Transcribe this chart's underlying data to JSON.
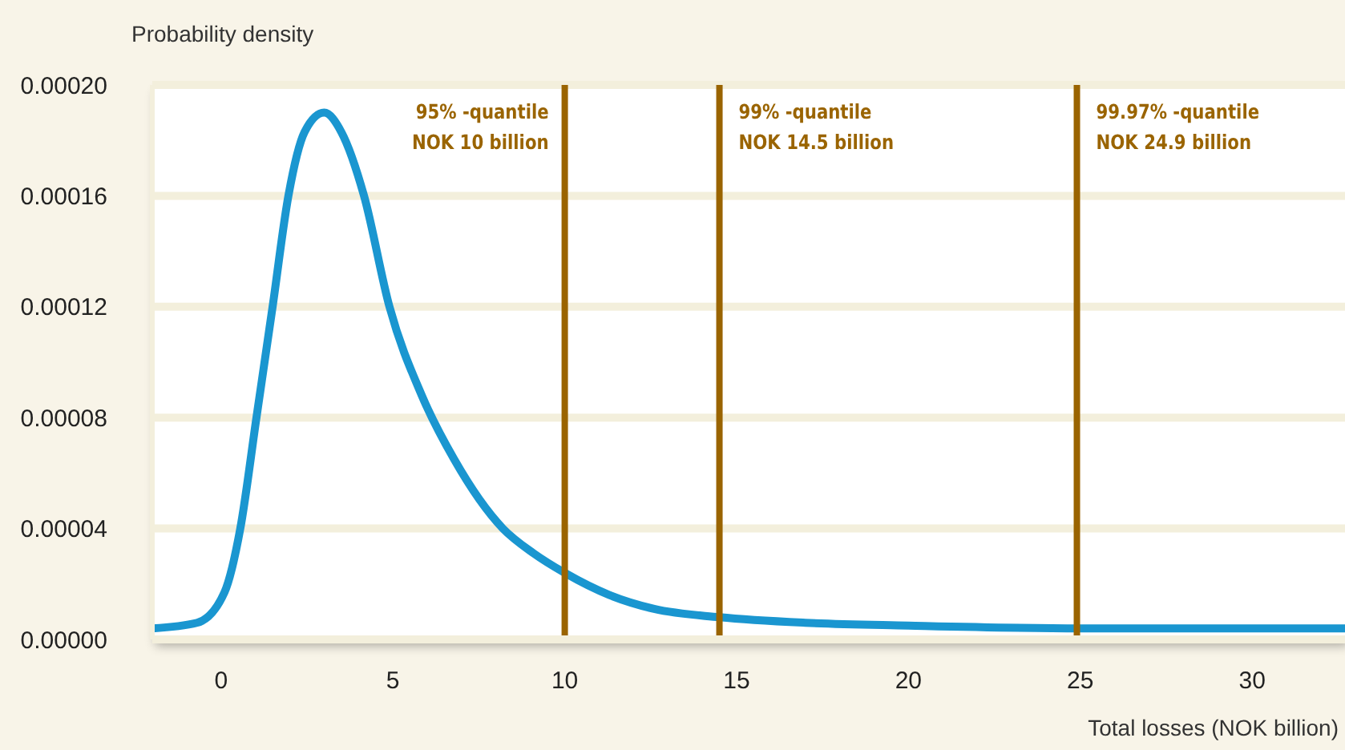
{
  "chart_data": {
    "type": "line",
    "ylabel": "Probability density",
    "xlabel": "Total losses (NOK billion)",
    "x": [
      -2,
      -0.7,
      0.1,
      0.56,
      1.03,
      1.5,
      1.96,
      2.43,
      3,
      3.5,
      4.16,
      4.9,
      5.84,
      6.78,
      8.2,
      9.1,
      10,
      11.3,
      12.6,
      14.5,
      17,
      20,
      25,
      32.7
    ],
    "series": [
      {
        "color": "#1a96d0",
        "values": [
          4e-06,
          6e-06,
          1.7e-05,
          4e-05,
          8e-05,
          0.00012,
          0.00016,
          0.000183,
          0.00019,
          0.000183,
          0.00016,
          0.00012,
          8.8e-05,
          6.5e-05,
          4e-05,
          3.1e-05,
          2.4e-05,
          1.6e-05,
          1.1e-05,
          8e-06,
          6e-06,
          5e-06,
          4e-06,
          4e-06
        ]
      }
    ],
    "xlim": [
      -2,
      32.7
    ],
    "xticks": [
      0,
      5,
      10,
      15,
      20,
      25,
      30
    ],
    "ylim": [
      0,
      0.0002
    ],
    "yticks": [
      {
        "value": 0,
        "label": "0.00000"
      },
      {
        "value": 4e-05,
        "label": "0.00004"
      },
      {
        "value": 8e-05,
        "label": "0.00008"
      },
      {
        "value": 0.00012,
        "label": "0.00012"
      },
      {
        "value": 0.00016,
        "label": "0.00016"
      },
      {
        "value": 0.0002,
        "label": "0.00020"
      }
    ],
    "grid": "y",
    "marker": "none",
    "line_style": "solid",
    "ref_lines": [
      {
        "axis": "x",
        "value": 10,
        "label": "95% -quantile\nNOK 10 billion",
        "color": "#9a6400"
      },
      {
        "axis": "x",
        "value": 14.5,
        "label": "99% -quantile\nNOK 14.5 billion",
        "color": "#9a6400"
      },
      {
        "axis": "x",
        "value": 24.9,
        "label": "99.97% -quantile\nNOK 24.9 billion",
        "color": "#9a6400"
      }
    ]
  }
}
